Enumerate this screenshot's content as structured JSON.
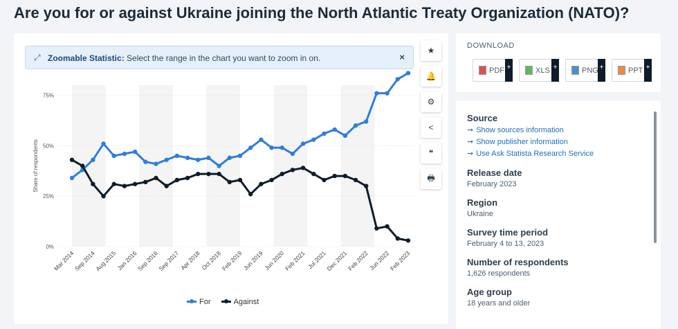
{
  "title": "Are you for or against Ukraine joining the North Atlantic Treaty Organization (NATO)?",
  "zoom_banner": {
    "label": "Zoomable Statistic:",
    "text": "Select the range in the chart you want to zoom in on.",
    "close": "×"
  },
  "toolbar": [
    {
      "name": "star-icon",
      "glyph": "★"
    },
    {
      "name": "bell-icon",
      "glyph": "🔔"
    },
    {
      "name": "gear-icon",
      "glyph": "⚙"
    },
    {
      "name": "share-icon",
      "glyph": "<"
    },
    {
      "name": "quote-icon",
      "glyph": "❝"
    },
    {
      "name": "print-icon",
      "glyph": "🖶"
    }
  ],
  "download": {
    "title": "DOWNLOAD",
    "buttons": [
      {
        "label": "PDF",
        "color": "#d9534f"
      },
      {
        "label": "XLS",
        "color": "#5cb85c"
      },
      {
        "label": "PNG",
        "color": "#4a8ed0"
      },
      {
        "label": "PPT",
        "color": "#f0883e"
      }
    ],
    "plus": "+"
  },
  "info": {
    "source_h": "Source",
    "links": [
      "Show sources information",
      "Show publisher information",
      "Use Ask Statista Research Service"
    ],
    "release_h": "Release date",
    "release_v": "February 2023",
    "region_h": "Region",
    "region_v": "Ukraine",
    "survey_h": "Survey time period",
    "survey_v": "February 4 to 13, 2023",
    "respondents_h": "Number of respondents",
    "respondents_v": "1,626 respondents",
    "age_h": "Age group",
    "age_v": "18 years and older"
  },
  "colors": {
    "for": "#2f7ed8",
    "against": "#0e1c2b"
  },
  "chart_data": {
    "type": "line",
    "ylabel": "Share of respondents",
    "ylim": [
      0,
      80
    ],
    "yticks": [
      0,
      25,
      50,
      75
    ],
    "ytick_labels": [
      "0%",
      "25%",
      "50%",
      "75%"
    ],
    "x_tick_labels": [
      "Mar 2014",
      "Sep 2014",
      "Aug 2015",
      "Jan 2016",
      "Sep 2016",
      "Sep 2017",
      "Apr 2018",
      "Oct 2018",
      "Feb 2019",
      "Jun 2019",
      "Jun 2020",
      "Feb 2021",
      "Jul 2021",
      "Dec 2021",
      "Feb 2022",
      "Jun 2022",
      "Feb 2023"
    ],
    "points_count": 33,
    "grid": true,
    "legend": "bottom-center",
    "series": [
      {
        "name": "For",
        "values": [
          34,
          38,
          43,
          51,
          45,
          46,
          47,
          42,
          41,
          43,
          45,
          44,
          43,
          44,
          40,
          44,
          45,
          49,
          53,
          49,
          49,
          46,
          51,
          53,
          56,
          58,
          55,
          60,
          62,
          76,
          76,
          83,
          86
        ]
      },
      {
        "name": "Against",
        "values": [
          43,
          40,
          31,
          25,
          31,
          30,
          31,
          32,
          34,
          30,
          33,
          34,
          36,
          36,
          36,
          32,
          33,
          26,
          31,
          33,
          36,
          38,
          39,
          36,
          33,
          35,
          35,
          33,
          30,
          9,
          10,
          4,
          3
        ]
      }
    ]
  }
}
